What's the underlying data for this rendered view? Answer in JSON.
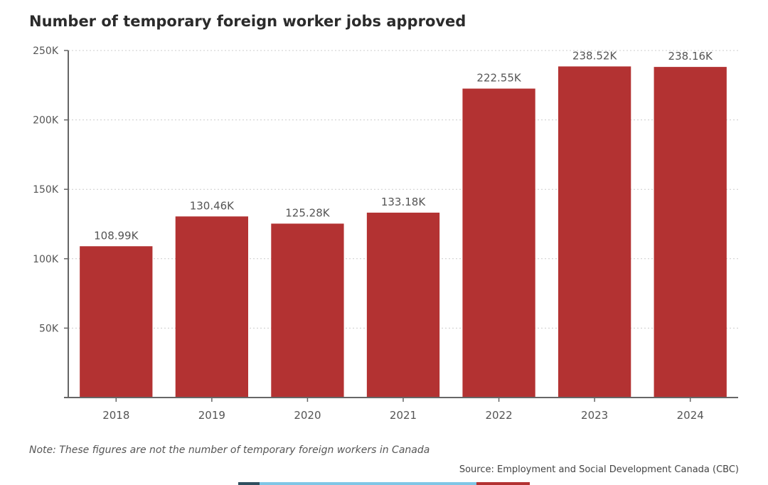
{
  "chart_data": {
    "type": "bar",
    "title": "Number of temporary foreign worker jobs approved",
    "categories": [
      "2018",
      "2019",
      "2020",
      "2021",
      "2022",
      "2023",
      "2024"
    ],
    "values": [
      108990,
      130460,
      125280,
      133180,
      222550,
      238520,
      238160
    ],
    "data_labels": [
      "108.99K",
      "130.46K",
      "125.28K",
      "133.18K",
      "222.55K",
      "238.52K",
      "238.16K"
    ],
    "xlabel": "",
    "ylabel": "",
    "ylim": [
      0,
      250000
    ],
    "y_ticks": [
      50000,
      100000,
      150000,
      200000,
      250000
    ],
    "y_tick_labels": [
      "50K",
      "100K",
      "150K",
      "200K",
      "250K"
    ],
    "grid": true,
    "bar_color": "#b33232"
  },
  "note": "Note: These figures are not the number of temporary foreign workers in Canada",
  "source": "Source: Employment and Social Development Canada (CBC)",
  "colors": {
    "axis": "#666666",
    "grid": "#cccccc",
    "tick_text": "#555555",
    "label_text": "#555555",
    "strip": [
      "#2f4f5f",
      "#7fc6e6",
      "#b33232"
    ]
  }
}
